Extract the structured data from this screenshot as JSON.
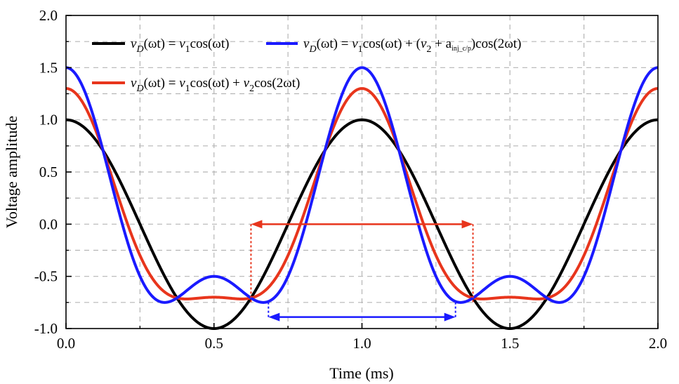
{
  "chart_data": {
    "type": "line",
    "xlabel": "Time (ms)",
    "ylabel": "Voltage amplitude",
    "xlim": [
      0.0,
      2.0
    ],
    "ylim": [
      -1.0,
      2.0
    ],
    "x_ticks": [
      "0.0",
      "0.5",
      "1.0",
      "1.5",
      "2.0"
    ],
    "y_ticks": [
      "-1.0",
      "-0.5",
      "0.0",
      "0.5",
      "1.0",
      "1.5",
      "2.0"
    ],
    "x_gridlines": [
      0.25,
      0.5,
      0.75,
      1.0,
      1.25,
      1.5,
      1.75
    ],
    "y_gridlines": [
      -0.75,
      -0.5,
      -0.25,
      0.0,
      0.25,
      0.5,
      0.75,
      1.0,
      1.25,
      1.5,
      1.75
    ],
    "grid": true,
    "legend_position": "top",
    "period_ms": 1.0,
    "series": [
      {
        "name": "black",
        "color": "#000000",
        "v1": 1.0,
        "v2_term": 0.0,
        "legend": {
          "v": "v",
          "D": "D",
          "arg": "(ωt) = ",
          "v1": "v",
          "sub1": "1",
          "rest": "cos(ωt)"
        }
      },
      {
        "name": "blue",
        "color": "#1a1aff",
        "v1": 1.0,
        "v2_term": 0.5,
        "legend": {
          "v": "v",
          "D": "D",
          "arg": "(ωt) = ",
          "v1": "v",
          "sub1": "1",
          "mid": "cos(ωt) + (",
          "v2": "v",
          "sub2": "2",
          "plus": " + a",
          "tiny": "inj_c/p",
          "rest": ")cos(2ωt)"
        }
      },
      {
        "name": "red",
        "color": "#e8351c",
        "v1": 1.0,
        "v2_term": 0.3,
        "legend": {
          "v": "v",
          "D": "D",
          "arg": "(ωt) = ",
          "v1": "v",
          "sub1": "1",
          "mid": "cos(ωt) + ",
          "v2": "v",
          "sub2": "2",
          "rest": "cos(2ωt)"
        }
      }
    ],
    "annotations": [
      {
        "name": "red-interval-arrow",
        "color": "#e8351c",
        "x_start": 0.625,
        "x_end": 1.375,
        "y": 0.0,
        "drop_to_y": -0.75
      },
      {
        "name": "blue-interval-arrow",
        "color": "#1a1aff",
        "x_start": 0.684,
        "x_end": 1.316,
        "y": -0.89,
        "drop_to_y": -0.75
      }
    ]
  }
}
